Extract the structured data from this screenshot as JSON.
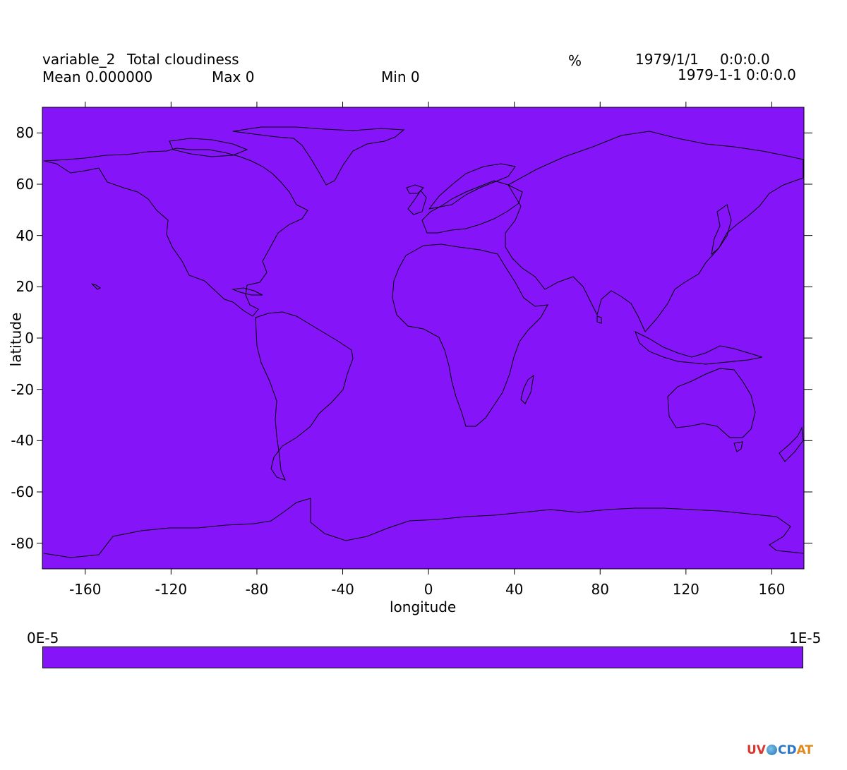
{
  "header": {
    "variable_name": "variable_2",
    "long_name": "Total cloudiness",
    "units": "%",
    "date": "1979/1/1",
    "time": "0:0:0.0",
    "datetime": "1979-1-1 0:0:0.0",
    "mean_label": "Mean 0.000000",
    "max_label": "Max 0",
    "min_label": "Min 0"
  },
  "map": {
    "projection": "linear lon/lat",
    "lon_range": [
      -180,
      175
    ],
    "lat_range": [
      -90,
      90
    ],
    "fill_color": "#8614f8",
    "coastline_color": "#000000",
    "xlabel": "longitude",
    "ylabel": "latitude",
    "x_ticks": [
      -160,
      -120,
      -80,
      -40,
      0,
      40,
      80,
      120,
      160
    ],
    "y_ticks": [
      80,
      60,
      40,
      20,
      0,
      -20,
      -40,
      -60,
      -80
    ],
    "x_tick_labels": [
      "-160",
      "-120",
      "-80",
      "-40",
      "0",
      "40",
      "80",
      "120",
      "160"
    ],
    "y_tick_labels": [
      "80",
      "60",
      "40",
      "20",
      "0",
      "-20",
      "-40",
      "-60",
      "-80"
    ]
  },
  "colorbar": {
    "min_label": "0E-5",
    "max_label": "1E-5",
    "color": "#8614f8"
  },
  "logo": {
    "part1": "UV",
    "part2": "CD",
    "part3": "AT"
  }
}
